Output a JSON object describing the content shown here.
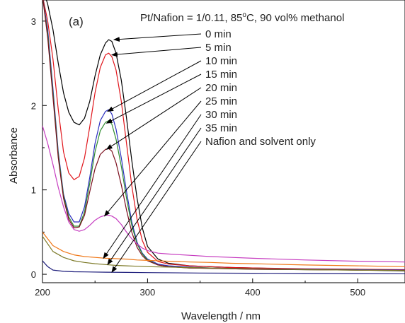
{
  "chart_data": {
    "type": "line",
    "panel_label": "(a)",
    "condition_label": "Pt/Nafion = 1/0.11, 85",
    "condition_superscript": "o",
    "condition_label_end": "C, 90 vol% methanol",
    "xlabel": "Wavelength / nm",
    "ylabel": "Absorbance",
    "xlim": [
      200,
      545
    ],
    "ylim": [
      -0.1,
      3.25
    ],
    "x_ticks": [
      200,
      300,
      400,
      500
    ],
    "y_ticks": [
      0,
      1,
      2,
      3
    ],
    "grid": false,
    "series": [
      {
        "name": "0 min",
        "color": "#000000",
        "x": [
          200,
          205,
          210,
          215,
          220,
          225,
          230,
          235,
          240,
          245,
          250,
          255,
          260,
          263,
          266,
          270,
          275,
          280,
          285,
          290,
          295,
          300,
          310,
          320,
          340,
          360,
          380,
          400,
          450,
          500,
          545
        ],
        "y": [
          3.4,
          3.2,
          2.9,
          2.5,
          2.15,
          1.92,
          1.8,
          1.77,
          1.85,
          2.05,
          2.35,
          2.6,
          2.74,
          2.78,
          2.76,
          2.62,
          2.3,
          1.85,
          1.35,
          0.9,
          0.55,
          0.33,
          0.18,
          0.13,
          0.1,
          0.09,
          0.08,
          0.075,
          0.06,
          0.05,
          0.04
        ]
      },
      {
        "name": "5 min",
        "color": "#e0151b",
        "x": [
          200,
          205,
          210,
          215,
          220,
          225,
          230,
          235,
          240,
          245,
          250,
          255,
          260,
          263,
          266,
          270,
          275,
          280,
          285,
          290,
          295,
          300,
          310,
          320,
          340,
          360,
          380,
          400,
          450,
          500,
          545
        ],
        "y": [
          3.3,
          3.0,
          2.55,
          1.95,
          1.45,
          1.2,
          1.12,
          1.16,
          1.38,
          1.75,
          2.15,
          2.45,
          2.6,
          2.62,
          2.58,
          2.42,
          2.05,
          1.55,
          1.05,
          0.65,
          0.4,
          0.26,
          0.15,
          0.12,
          0.1,
          0.09,
          0.08,
          0.075,
          0.065,
          0.06,
          0.055
        ]
      },
      {
        "name": "10 min",
        "color": "#2b2fbf",
        "x": [
          200,
          205,
          210,
          215,
          220,
          225,
          230,
          235,
          240,
          245,
          250,
          255,
          260,
          263,
          266,
          270,
          275,
          280,
          285,
          290,
          295,
          300,
          310,
          320,
          340,
          360,
          380,
          400,
          450,
          500,
          545
        ],
        "y": [
          3.3,
          2.9,
          2.2,
          1.45,
          0.95,
          0.72,
          0.62,
          0.62,
          0.8,
          1.15,
          1.55,
          1.82,
          1.93,
          1.95,
          1.9,
          1.72,
          1.38,
          0.98,
          0.62,
          0.38,
          0.25,
          0.18,
          0.12,
          0.1,
          0.085,
          0.075,
          0.07,
          0.065,
          0.06,
          0.055,
          0.05
        ]
      },
      {
        "name": "15 min",
        "color": "#2e8b2e",
        "x": [
          200,
          205,
          210,
          215,
          220,
          225,
          230,
          235,
          240,
          245,
          250,
          255,
          260,
          263,
          266,
          270,
          275,
          280,
          285,
          290,
          295,
          300,
          310,
          320,
          340,
          360,
          380,
          400,
          450,
          500,
          545
        ],
        "y": [
          3.3,
          2.85,
          2.15,
          1.42,
          0.93,
          0.68,
          0.57,
          0.57,
          0.74,
          1.08,
          1.45,
          1.7,
          1.8,
          1.82,
          1.78,
          1.6,
          1.28,
          0.9,
          0.58,
          0.36,
          0.24,
          0.17,
          0.11,
          0.09,
          0.075,
          0.07,
          0.065,
          0.06,
          0.055,
          0.05,
          0.045
        ]
      },
      {
        "name": "20 min",
        "color": "#7b0e1d",
        "x": [
          200,
          205,
          210,
          215,
          220,
          225,
          230,
          235,
          240,
          245,
          250,
          255,
          260,
          263,
          266,
          270,
          275,
          280,
          285,
          290,
          295,
          300,
          310,
          320,
          340,
          360,
          380,
          400,
          450,
          500,
          545
        ],
        "y": [
          3.3,
          2.8,
          2.1,
          1.38,
          0.9,
          0.65,
          0.55,
          0.56,
          0.7,
          0.98,
          1.25,
          1.42,
          1.48,
          1.49,
          1.46,
          1.32,
          1.06,
          0.76,
          0.5,
          0.32,
          0.22,
          0.16,
          0.11,
          0.09,
          0.075,
          0.07,
          0.065,
          0.06,
          0.055,
          0.05,
          0.045
        ]
      },
      {
        "name": "25 min",
        "color": "#c63cc0",
        "x": [
          200,
          205,
          210,
          215,
          220,
          225,
          230,
          235,
          240,
          245,
          250,
          255,
          260,
          263,
          266,
          270,
          275,
          280,
          285,
          290,
          295,
          300,
          310,
          320,
          340,
          360,
          380,
          400,
          450,
          500,
          545
        ],
        "y": [
          1.76,
          1.55,
          1.3,
          1.03,
          0.8,
          0.62,
          0.53,
          0.51,
          0.53,
          0.58,
          0.64,
          0.68,
          0.7,
          0.7,
          0.69,
          0.66,
          0.59,
          0.5,
          0.42,
          0.36,
          0.31,
          0.28,
          0.25,
          0.24,
          0.225,
          0.21,
          0.2,
          0.19,
          0.17,
          0.155,
          0.145
        ]
      },
      {
        "name": "30 min",
        "color": "#f07818",
        "x": [
          200,
          210,
          220,
          230,
          240,
          250,
          260,
          270,
          280,
          290,
          300,
          320,
          340,
          360,
          380,
          400,
          450,
          500,
          545
        ],
        "y": [
          0.5,
          0.34,
          0.27,
          0.23,
          0.21,
          0.2,
          0.19,
          0.185,
          0.18,
          0.17,
          0.165,
          0.155,
          0.145,
          0.14,
          0.13,
          0.125,
          0.11,
          0.1,
          0.09
        ]
      },
      {
        "name": "35 min",
        "color": "#7d7a28",
        "x": [
          200,
          210,
          220,
          230,
          240,
          250,
          260,
          270,
          280,
          290,
          300,
          320,
          340,
          360,
          380,
          400,
          450,
          500,
          545
        ],
        "y": [
          0.45,
          0.27,
          0.2,
          0.16,
          0.14,
          0.125,
          0.115,
          0.105,
          0.1,
          0.095,
          0.09,
          0.085,
          0.08,
          0.075,
          0.07,
          0.065,
          0.055,
          0.05,
          0.045
        ]
      },
      {
        "name": "Nafion and solvent only",
        "color": "#1b1b7a",
        "x": [
          200,
          205,
          210,
          220,
          230,
          240,
          260,
          280,
          300,
          350,
          400,
          450,
          500,
          545
        ],
        "y": [
          0.16,
          0.09,
          0.05,
          0.035,
          0.03,
          0.028,
          0.025,
          0.022,
          0.02,
          0.015,
          0.012,
          0.01,
          0.008,
          0.006
        ]
      }
    ],
    "annotations": [
      {
        "label": "0 min",
        "series": "0 min",
        "target": [
          268,
          2.78
        ]
      },
      {
        "label": "5 min",
        "series": "5 min",
        "target": [
          266,
          2.6
        ]
      },
      {
        "label": "10 min",
        "series": "10 min",
        "target": [
          262,
          1.93
        ]
      },
      {
        "label": "15 min",
        "series": "15 min",
        "target": [
          261,
          1.79
        ]
      },
      {
        "label": "20 min",
        "series": "20 min",
        "target": [
          261,
          1.48
        ]
      },
      {
        "label": "25 min",
        "series": "25 min",
        "target": [
          259,
          0.69
        ]
      },
      {
        "label": "30 min",
        "series": "30 min",
        "target": [
          258,
          0.19
        ]
      },
      {
        "label": "35 min",
        "series": "35 min",
        "target": [
          262,
          0.115
        ]
      },
      {
        "label": "Nafion and solvent only",
        "series": "Nafion and solvent only",
        "target": [
          266,
          0.025
        ]
      }
    ]
  }
}
